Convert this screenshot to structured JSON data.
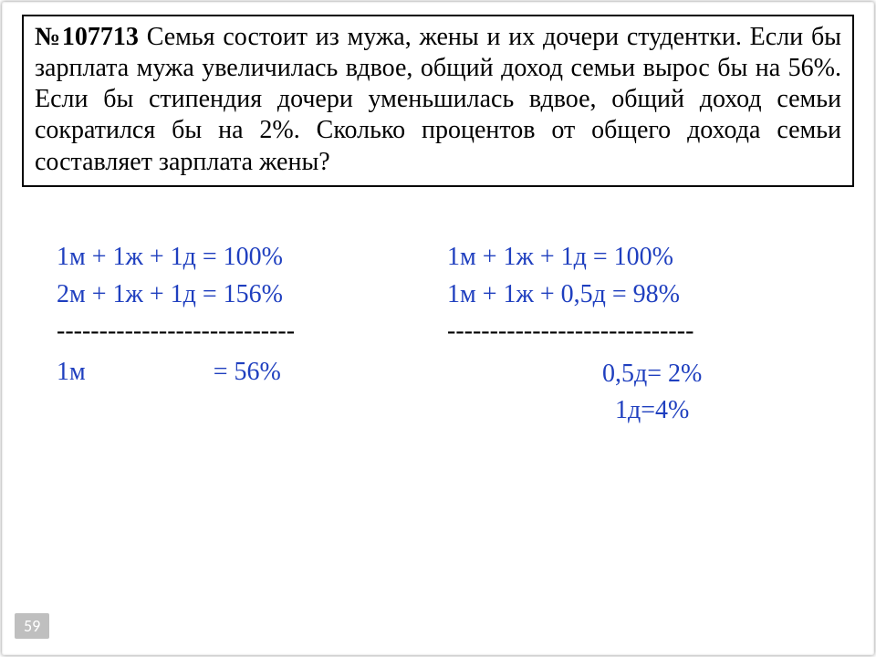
{
  "problem": {
    "number": "№107713",
    "text": " Семья состоит из мужа, жены и их дочери студентки. Если бы зарплата мужа увеличилась вдвое, общий доход семьи вырос бы на 56%. Если бы стипендия дочери уменьшилась вдвое, общий доход семьи сократился бы на 2%. Сколько процентов от общего дохода семьи составляет зарплата жены?"
  },
  "left": {
    "eq1": "1м + 1ж + 1д = 100%",
    "eq2": "2м + 1ж + 1д = 156%",
    "dash": "----------------------------",
    "res": "1м                    = 56%"
  },
  "right": {
    "eq1": "1м + 1ж + 1д = 100%",
    "eq2": "1м + 1ж + 0,5д = 98%",
    "dash": "-----------------------------",
    "res1": "0,5д= 2%",
    "res2": "  1д=4%"
  },
  "page": "59",
  "colors": {
    "equation": "#1f3fbf",
    "text": "#000000",
    "badge_bg": "#bfbfbf",
    "badge_fg": "#ffffff"
  },
  "fonts": {
    "body": "Times New Roman",
    "math": "Cambria Math",
    "badge": "Calibri",
    "problem_size_pt": 21,
    "eq_size_pt": 21
  }
}
